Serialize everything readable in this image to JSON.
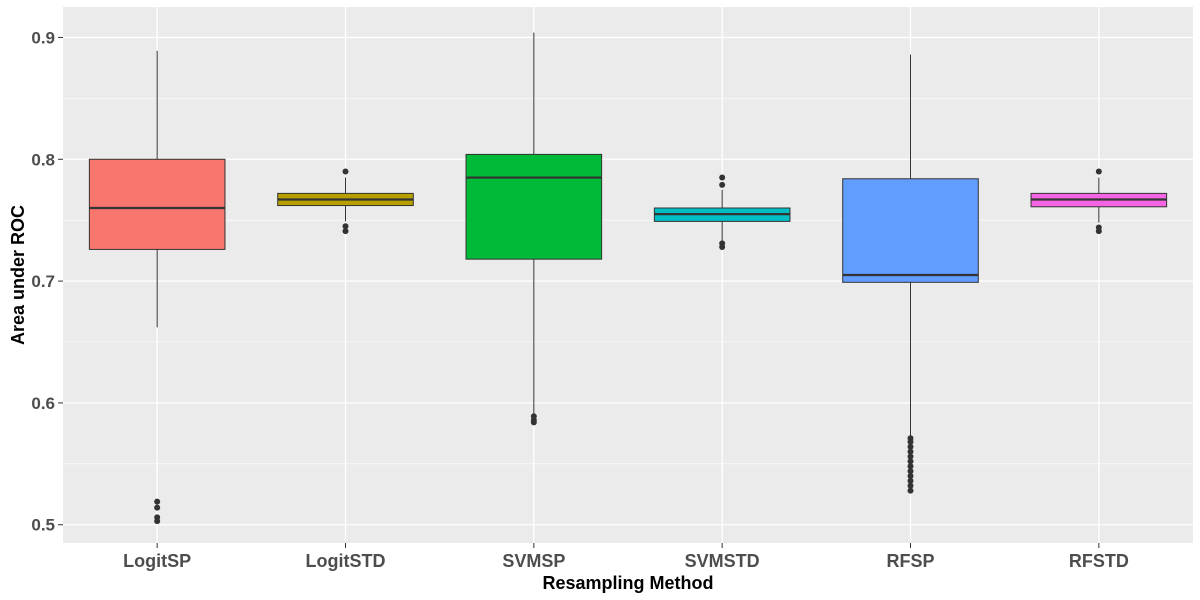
{
  "chart_data": {
    "type": "boxplot",
    "title": "",
    "xlabel": "Resampling Method",
    "ylabel": "Area under ROC",
    "ylim": [
      0.485,
      0.925
    ],
    "yticks": [
      0.5,
      0.6,
      0.7,
      0.8,
      0.9
    ],
    "ytick_labels": [
      "0.5",
      "0.6",
      "0.7",
      "0.8",
      "0.9"
    ],
    "grid": true,
    "legend": "none",
    "panel_background": "#ebebeb",
    "grid_color": "#ffffff",
    "categories": [
      "LogitSP",
      "LogitSTD",
      "SVMSP",
      "SVMSTD",
      "RFSP",
      "RFSTD"
    ],
    "boxes": [
      {
        "category": "LogitSP",
        "color": "#F8766D",
        "whisker_low": 0.662,
        "q1": 0.726,
        "median": 0.76,
        "q3": 0.8,
        "whisker_high": 0.889,
        "outliers": [
          0.503,
          0.506,
          0.514,
          0.519
        ]
      },
      {
        "category": "LogitSTD",
        "color": "#B79F00",
        "whisker_low": 0.749,
        "q1": 0.762,
        "median": 0.767,
        "q3": 0.772,
        "whisker_high": 0.785,
        "outliers": [
          0.741,
          0.745,
          0.79
        ]
      },
      {
        "category": "SVMSP",
        "color": "#00BA38",
        "whisker_low": 0.59,
        "q1": 0.718,
        "median": 0.785,
        "q3": 0.804,
        "whisker_high": 0.904,
        "outliers": [
          0.584,
          0.586,
          0.589
        ]
      },
      {
        "category": "SVMSTD",
        "color": "#00BFC4",
        "whisker_low": 0.733,
        "q1": 0.749,
        "median": 0.755,
        "q3": 0.76,
        "whisker_high": 0.775,
        "outliers": [
          0.728,
          0.731,
          0.779,
          0.785
        ]
      },
      {
        "category": "RFSP",
        "color": "#619CFF",
        "whisker_low": 0.572,
        "q1": 0.699,
        "median": 0.705,
        "q3": 0.784,
        "whisker_high": 0.886,
        "outliers": [
          0.528,
          0.532,
          0.536,
          0.54,
          0.544,
          0.548,
          0.552,
          0.556,
          0.56,
          0.564,
          0.568,
          0.571
        ]
      },
      {
        "category": "RFSTD",
        "color": "#F564E3",
        "whisker_low": 0.748,
        "q1": 0.761,
        "median": 0.767,
        "q3": 0.772,
        "whisker_high": 0.785,
        "outliers": [
          0.741,
          0.744,
          0.79
        ]
      }
    ]
  }
}
